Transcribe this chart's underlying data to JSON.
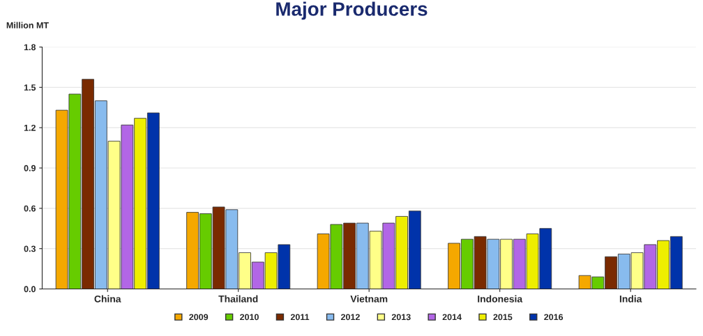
{
  "chart_data": {
    "type": "bar",
    "title": "Major Producers",
    "ylabel": "Million MT",
    "categories": [
      "China",
      "Thailand",
      "Vietnam",
      "Indonesia",
      "India"
    ],
    "series": [
      {
        "name": "2009",
        "color": "#f5a800",
        "values": [
          1.33,
          0.57,
          0.41,
          0.34,
          0.1
        ]
      },
      {
        "name": "2010",
        "color": "#66cc00",
        "values": [
          1.45,
          0.56,
          0.48,
          0.37,
          0.09
        ]
      },
      {
        "name": "2011",
        "color": "#7a2a00",
        "values": [
          1.56,
          0.61,
          0.49,
          0.39,
          0.24
        ]
      },
      {
        "name": "2012",
        "color": "#88bbee",
        "values": [
          1.4,
          0.59,
          0.49,
          0.37,
          0.26
        ]
      },
      {
        "name": "2013",
        "color": "#ffff88",
        "values": [
          1.1,
          0.27,
          0.43,
          0.37,
          0.27
        ]
      },
      {
        "name": "2014",
        "color": "#b266e6",
        "values": [
          1.22,
          0.2,
          0.49,
          0.37,
          0.33
        ]
      },
      {
        "name": "2015",
        "color": "#eeee00",
        "values": [
          1.27,
          0.27,
          0.54,
          0.41,
          0.36
        ]
      },
      {
        "name": "2016",
        "color": "#0033aa",
        "values": [
          1.31,
          0.33,
          0.58,
          0.45,
          0.39
        ]
      }
    ],
    "ylim": [
      0,
      1.8
    ],
    "yticks": [
      {
        "value": 0,
        "label": "0.0"
      },
      0.3,
      0.6,
      0.9,
      1.2,
      1.5,
      1.8
    ],
    "grid": "y",
    "legend": "bottom"
  }
}
